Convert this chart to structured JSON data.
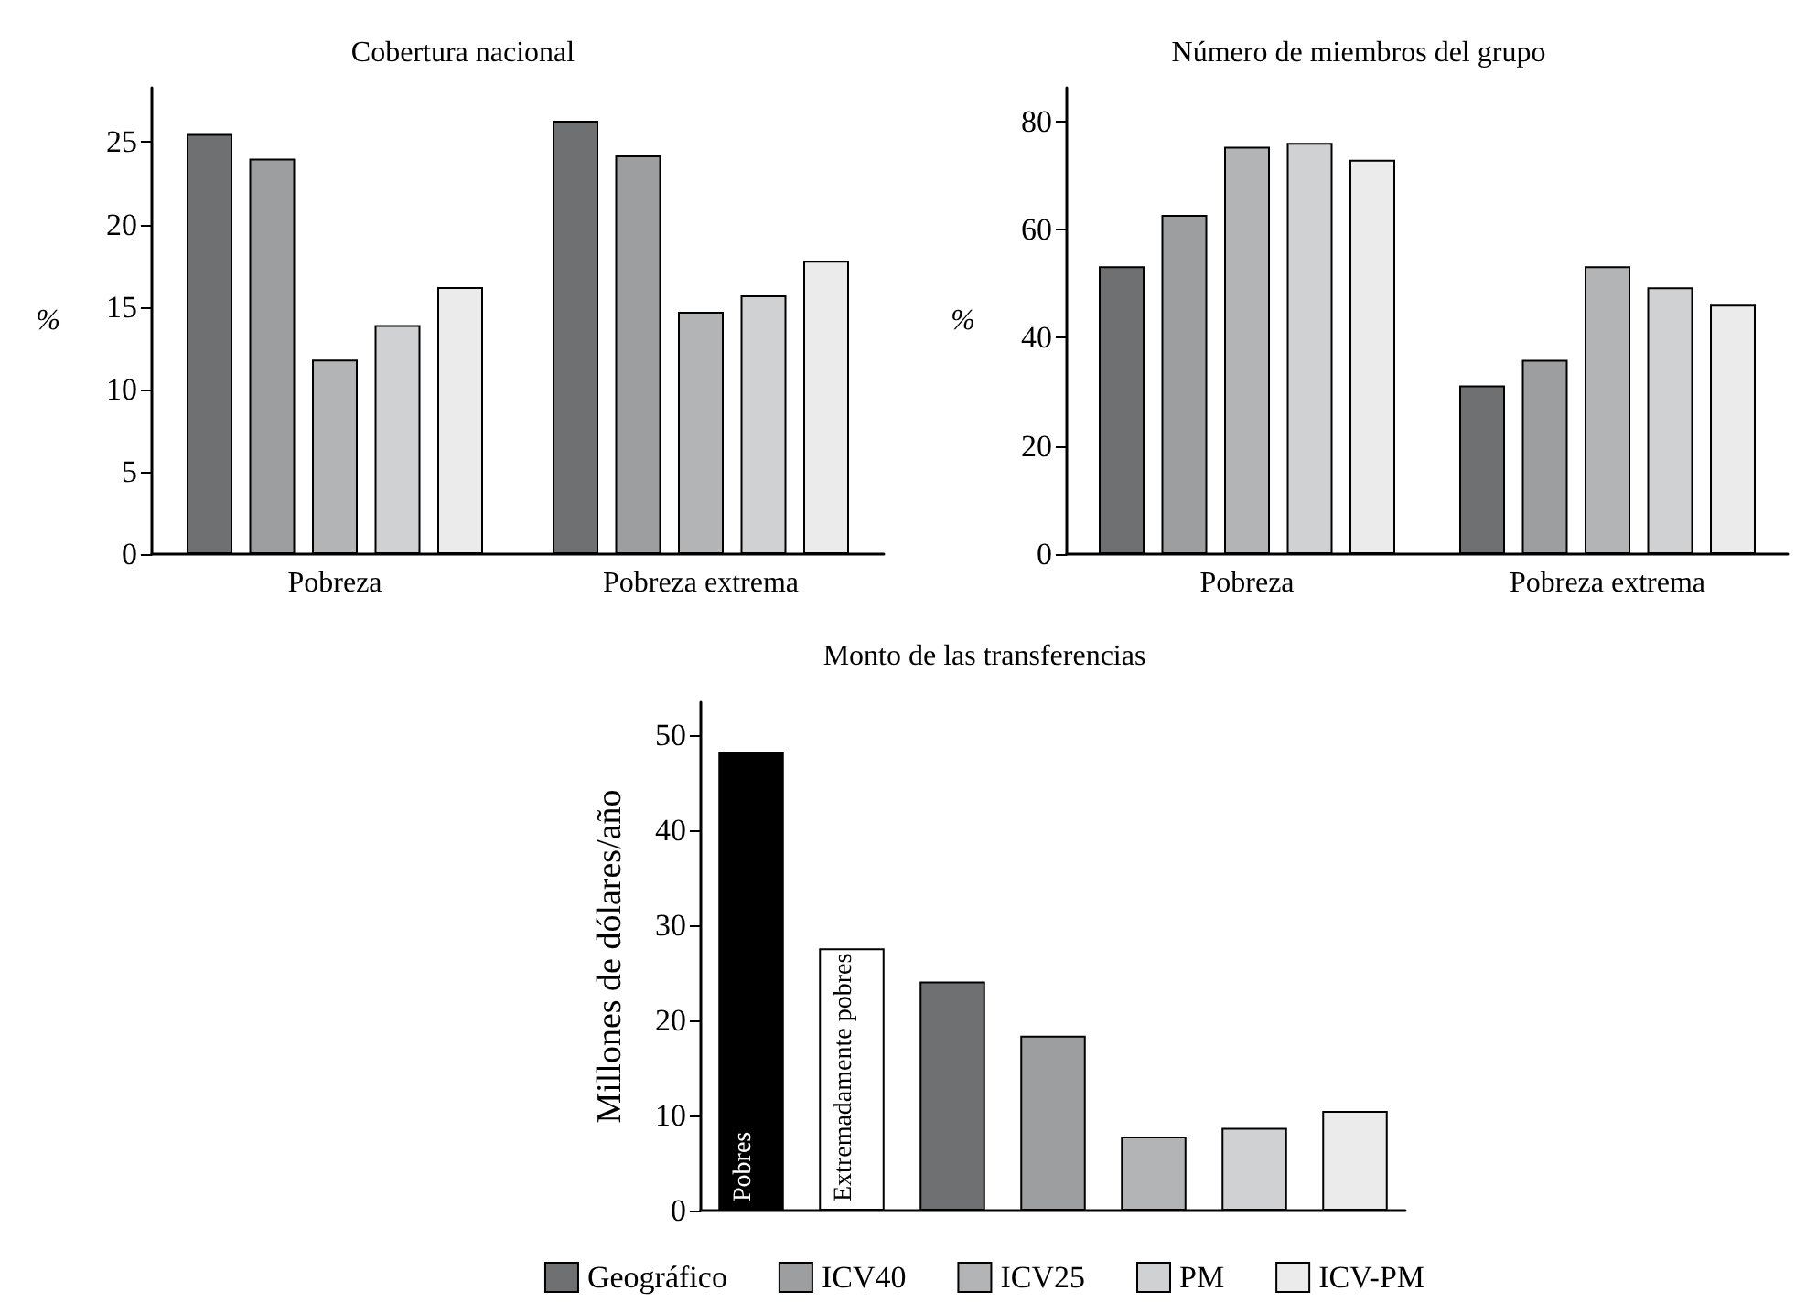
{
  "chart_data": [
    {
      "type": "bar",
      "title": "Cobertura nacional",
      "ylabel": "%",
      "categories": [
        "Pobreza",
        "Pobreza extrema"
      ],
      "ylim": [
        0,
        28.3
      ],
      "yticks": [
        0,
        5,
        10,
        15,
        20,
        25
      ],
      "grid": false,
      "legend": false,
      "series": [
        {
          "color": "#6f7072",
          "values": [
            25.5,
            26.3
          ]
        },
        {
          "color": "#9d9ea0",
          "values": [
            24.0,
            24.2
          ]
        },
        {
          "color": "#b3b4b6",
          "values": [
            11.8,
            14.7
          ]
        },
        {
          "color": "#d0d1d3",
          "values": [
            13.9,
            15.7
          ]
        },
        {
          "color": "#ebebeb",
          "values": [
            16.2,
            17.8
          ]
        }
      ]
    },
    {
      "type": "bar",
      "title": "Número de miembros del grupo",
      "ylabel": "%",
      "categories": [
        "Pobreza",
        "Pobreza extrema"
      ],
      "ylim": [
        0,
        86.2
      ],
      "yticks": [
        0,
        20,
        40,
        60,
        80
      ],
      "grid": false,
      "legend": false,
      "series": [
        {
          "color": "#6f7072",
          "values": [
            53.2,
            31.2
          ]
        },
        {
          "color": "#9d9ea0",
          "values": [
            62.7,
            35.9
          ]
        },
        {
          "color": "#b3b4b6",
          "values": [
            75.3,
            53.2
          ]
        },
        {
          "color": "#d0d1d3",
          "values": [
            76.0,
            49.3
          ]
        },
        {
          "color": "#ebebeb",
          "values": [
            72.9,
            46.1
          ]
        }
      ]
    },
    {
      "type": "bar",
      "title": "Monto de las transferencias",
      "ylabel": "Millones de dólares/año",
      "categories": [
        "Pobres",
        "Extremadamente pobres",
        null,
        null,
        null,
        null,
        null
      ],
      "ylim": [
        0,
        53.5
      ],
      "yticks": [
        0,
        10,
        20,
        30,
        40,
        50
      ],
      "grid": false,
      "legend": "bottom",
      "stacked": true,
      "tick_labels": "y",
      "series": [
        {
          "color": "#000000",
          "values": [
            48.2,
            null,
            null,
            null,
            null,
            null,
            null
          ]
        },
        {
          "color": "#ffffff",
          "values": [
            null,
            27.6,
            null,
            null,
            null,
            null,
            null
          ]
        },
        {
          "name": "Geográfico",
          "color": "#6f7072",
          "values": [
            null,
            null,
            24.1,
            null,
            null,
            null,
            null
          ]
        },
        {
          "name": "ICV40",
          "color": "#9d9ea0",
          "values": [
            null,
            null,
            null,
            18.4,
            null,
            null,
            null
          ]
        },
        {
          "name": "ICV25",
          "color": "#b3b4b6",
          "values": [
            null,
            null,
            null,
            null,
            7.8,
            null,
            null
          ]
        },
        {
          "name": "PM",
          "color": "#d0d1d3",
          "values": [
            null,
            null,
            null,
            null,
            null,
            8.7,
            null
          ]
        },
        {
          "name": "ICV-PM",
          "color": "#ebebeb",
          "values": [
            null,
            null,
            null,
            null,
            null,
            null,
            10.5
          ]
        }
      ]
    }
  ]
}
